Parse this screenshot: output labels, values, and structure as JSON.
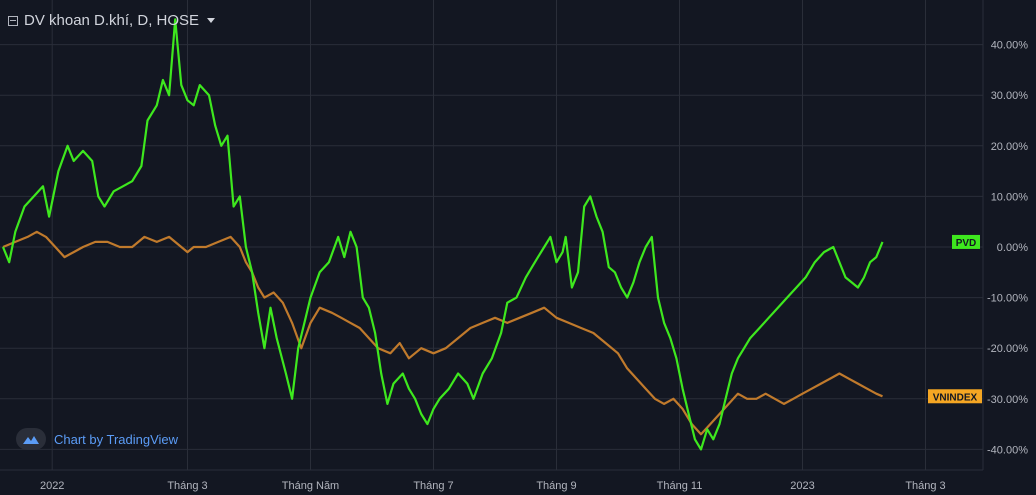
{
  "header": {
    "title": "DV khoan D.khí, D, HOSE"
  },
  "watermark": {
    "text": "Chart by TradingView",
    "icon": "tradingview-cloud-icon"
  },
  "colors": {
    "background": "#131722",
    "grid": "#2a2e39",
    "pvd": "#3ee81e",
    "vnindex": "#c07a2c",
    "vnindex_badge": "#f5a623",
    "text": "#d1d4dc",
    "axis_text": "#b2b5be"
  },
  "chart_data": {
    "type": "line",
    "y_unit": "%",
    "ylim": [
      -42,
      47
    ],
    "y_ticks": [
      40,
      30,
      20,
      10,
      0,
      -10,
      -20,
      -30,
      -40
    ],
    "y_tick_labels": [
      "40.00%",
      "30.00%",
      "20.00%",
      "10.00%",
      "0.00%",
      "-10.00%",
      "-20.00%",
      "-30.00%",
      "-40.00%"
    ],
    "x_ticks": [
      {
        "label": "2022",
        "x": 0.8
      },
      {
        "label": "Tháng 3",
        "x": 3.0
      },
      {
        "label": "Tháng Năm",
        "x": 5.0
      },
      {
        "label": "Tháng 7",
        "x": 7.0
      },
      {
        "label": "Tháng 9",
        "x": 9.0
      },
      {
        "label": "Tháng 11",
        "x": 11.0
      },
      {
        "label": "2023",
        "x": 13.0
      },
      {
        "label": "Tháng 3",
        "x": 15.0
      }
    ],
    "xlim": [
      0,
      15.75
    ],
    "grid": true,
    "series": [
      {
        "name": "PVD",
        "badge": "PVD",
        "points": [
          [
            0,
            0
          ],
          [
            0.1,
            -3
          ],
          [
            0.2,
            3
          ],
          [
            0.35,
            8
          ],
          [
            0.5,
            10
          ],
          [
            0.65,
            12
          ],
          [
            0.75,
            6
          ],
          [
            0.9,
            15
          ],
          [
            1.05,
            20
          ],
          [
            1.15,
            17
          ],
          [
            1.3,
            19
          ],
          [
            1.45,
            17
          ],
          [
            1.55,
            10
          ],
          [
            1.65,
            8
          ],
          [
            1.8,
            11
          ],
          [
            1.95,
            12
          ],
          [
            2.1,
            13
          ],
          [
            2.25,
            16
          ],
          [
            2.35,
            25
          ],
          [
            2.5,
            28
          ],
          [
            2.6,
            33
          ],
          [
            2.7,
            30
          ],
          [
            2.8,
            45
          ],
          [
            2.9,
            32
          ],
          [
            3.0,
            29
          ],
          [
            3.1,
            28
          ],
          [
            3.2,
            32
          ],
          [
            3.35,
            30
          ],
          [
            3.45,
            24
          ],
          [
            3.55,
            20
          ],
          [
            3.65,
            22
          ],
          [
            3.75,
            8
          ],
          [
            3.85,
            10
          ],
          [
            3.95,
            0
          ],
          [
            4.05,
            -5
          ],
          [
            4.15,
            -13
          ],
          [
            4.25,
            -20
          ],
          [
            4.35,
            -12
          ],
          [
            4.45,
            -18
          ],
          [
            4.6,
            -25
          ],
          [
            4.7,
            -30
          ],
          [
            4.8,
            -20
          ],
          [
            4.9,
            -15
          ],
          [
            5.0,
            -10
          ],
          [
            5.15,
            -5
          ],
          [
            5.3,
            -3
          ],
          [
            5.45,
            2
          ],
          [
            5.55,
            -2
          ],
          [
            5.65,
            3
          ],
          [
            5.75,
            0
          ],
          [
            5.85,
            -10
          ],
          [
            5.95,
            -12
          ],
          [
            6.05,
            -17
          ],
          [
            6.15,
            -25
          ],
          [
            6.25,
            -31
          ],
          [
            6.35,
            -27
          ],
          [
            6.5,
            -25
          ],
          [
            6.6,
            -28
          ],
          [
            6.7,
            -30
          ],
          [
            6.8,
            -33
          ],
          [
            6.9,
            -35
          ],
          [
            7.0,
            -32
          ],
          [
            7.1,
            -30
          ],
          [
            7.25,
            -28
          ],
          [
            7.4,
            -25
          ],
          [
            7.55,
            -27
          ],
          [
            7.65,
            -30
          ],
          [
            7.8,
            -25
          ],
          [
            7.95,
            -22
          ],
          [
            8.1,
            -17
          ],
          [
            8.2,
            -11
          ],
          [
            8.35,
            -10
          ],
          [
            8.5,
            -6
          ],
          [
            8.6,
            -4
          ],
          [
            8.7,
            -2
          ],
          [
            8.8,
            0
          ],
          [
            8.9,
            2
          ],
          [
            9.0,
            -3
          ],
          [
            9.1,
            -1
          ],
          [
            9.15,
            2
          ],
          [
            9.25,
            -8
          ],
          [
            9.35,
            -5
          ],
          [
            9.45,
            8
          ],
          [
            9.55,
            10
          ],
          [
            9.65,
            6
          ],
          [
            9.75,
            3
          ],
          [
            9.85,
            -4
          ],
          [
            9.95,
            -5
          ],
          [
            10.05,
            -8
          ],
          [
            10.15,
            -10
          ],
          [
            10.25,
            -7
          ],
          [
            10.35,
            -3
          ],
          [
            10.45,
            0
          ],
          [
            10.55,
            2
          ],
          [
            10.65,
            -10
          ],
          [
            10.75,
            -15
          ],
          [
            10.85,
            -18
          ],
          [
            10.95,
            -22
          ],
          [
            11.05,
            -28
          ],
          [
            11.15,
            -33
          ],
          [
            11.25,
            -38
          ],
          [
            11.35,
            -40
          ],
          [
            11.45,
            -36
          ],
          [
            11.55,
            -38
          ],
          [
            11.65,
            -35
          ],
          [
            11.75,
            -30
          ],
          [
            11.85,
            -25
          ],
          [
            11.95,
            -22
          ],
          [
            12.05,
            -20
          ],
          [
            12.15,
            -18
          ],
          [
            12.3,
            -16
          ],
          [
            12.45,
            -14
          ],
          [
            12.6,
            -12
          ],
          [
            12.75,
            -10
          ],
          [
            12.9,
            -8
          ],
          [
            13.05,
            -6
          ],
          [
            13.2,
            -3
          ],
          [
            13.35,
            -1
          ],
          [
            13.5,
            0
          ],
          [
            13.6,
            -3
          ],
          [
            13.7,
            -6
          ],
          [
            13.8,
            -7
          ],
          [
            13.9,
            -8
          ],
          [
            14.0,
            -6
          ],
          [
            14.1,
            -3
          ],
          [
            14.2,
            -2
          ],
          [
            14.3,
            1
          ]
        ]
      },
      {
        "name": "VNINDEX",
        "badge": "VNINDEX",
        "points": [
          [
            0,
            0
          ],
          [
            0.2,
            1
          ],
          [
            0.4,
            2
          ],
          [
            0.55,
            3
          ],
          [
            0.7,
            2
          ],
          [
            0.85,
            0
          ],
          [
            1.0,
            -2
          ],
          [
            1.15,
            -1
          ],
          [
            1.3,
            0
          ],
          [
            1.5,
            1
          ],
          [
            1.7,
            1
          ],
          [
            1.9,
            0
          ],
          [
            2.1,
            0
          ],
          [
            2.3,
            2
          ],
          [
            2.5,
            1
          ],
          [
            2.7,
            2
          ],
          [
            2.9,
            0
          ],
          [
            3.0,
            -1
          ],
          [
            3.1,
            0
          ],
          [
            3.3,
            0
          ],
          [
            3.5,
            1
          ],
          [
            3.7,
            2
          ],
          [
            3.85,
            0
          ],
          [
            3.95,
            -3
          ],
          [
            4.05,
            -5
          ],
          [
            4.15,
            -8
          ],
          [
            4.25,
            -10
          ],
          [
            4.4,
            -9
          ],
          [
            4.55,
            -11
          ],
          [
            4.7,
            -15
          ],
          [
            4.85,
            -20
          ],
          [
            5.0,
            -15
          ],
          [
            5.15,
            -12
          ],
          [
            5.35,
            -13
          ],
          [
            5.5,
            -14
          ],
          [
            5.65,
            -15
          ],
          [
            5.8,
            -16
          ],
          [
            5.95,
            -18
          ],
          [
            6.1,
            -20
          ],
          [
            6.3,
            -21
          ],
          [
            6.45,
            -19
          ],
          [
            6.6,
            -22
          ],
          [
            6.8,
            -20
          ],
          [
            7.0,
            -21
          ],
          [
            7.2,
            -20
          ],
          [
            7.4,
            -18
          ],
          [
            7.6,
            -16
          ],
          [
            7.8,
            -15
          ],
          [
            8.0,
            -14
          ],
          [
            8.2,
            -15
          ],
          [
            8.4,
            -14
          ],
          [
            8.6,
            -13
          ],
          [
            8.8,
            -12
          ],
          [
            9.0,
            -14
          ],
          [
            9.2,
            -15
          ],
          [
            9.4,
            -16
          ],
          [
            9.6,
            -17
          ],
          [
            9.8,
            -19
          ],
          [
            10.0,
            -21
          ],
          [
            10.15,
            -24
          ],
          [
            10.3,
            -26
          ],
          [
            10.45,
            -28
          ],
          [
            10.6,
            -30
          ],
          [
            10.75,
            -31
          ],
          [
            10.9,
            -30
          ],
          [
            11.05,
            -32
          ],
          [
            11.2,
            -35
          ],
          [
            11.35,
            -37
          ],
          [
            11.5,
            -35
          ],
          [
            11.65,
            -33
          ],
          [
            11.8,
            -31
          ],
          [
            11.95,
            -29
          ],
          [
            12.1,
            -30
          ],
          [
            12.25,
            -30
          ],
          [
            12.4,
            -29
          ],
          [
            12.55,
            -30
          ],
          [
            12.7,
            -31
          ],
          [
            12.85,
            -30
          ],
          [
            13.0,
            -29
          ],
          [
            13.15,
            -28
          ],
          [
            13.3,
            -27
          ],
          [
            13.45,
            -26
          ],
          [
            13.6,
            -25
          ],
          [
            13.75,
            -26
          ],
          [
            13.9,
            -27
          ],
          [
            14.05,
            -28
          ],
          [
            14.2,
            -29
          ],
          [
            14.3,
            -29.5
          ]
        ]
      }
    ]
  }
}
